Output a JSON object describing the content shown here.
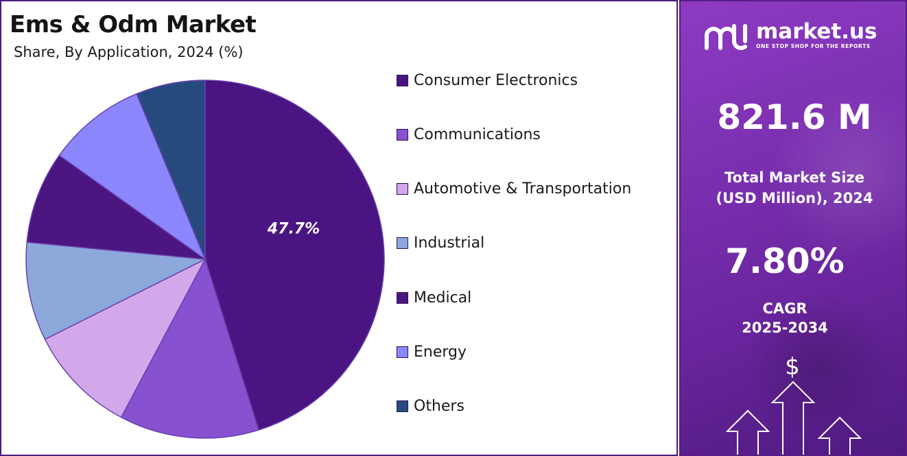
{
  "chart_data": {
    "type": "pie",
    "title": "Ems & Odm Market",
    "subtitle": "Share, By Application, 2024 (%)",
    "slices": [
      {
        "name": "Consumer Electronics",
        "value": 47.7,
        "color": "#4a1582",
        "label": "47.7%"
      },
      {
        "name": "Communications",
        "value": 13.3,
        "color": "#8751d0",
        "label": ""
      },
      {
        "name": "Automotive & Transportation",
        "value": 10.4,
        "color": "#d3a8ea",
        "label": ""
      },
      {
        "name": "Industrial",
        "value": 9.4,
        "color": "#8da8db",
        "label": ""
      },
      {
        "name": "Medical",
        "value": 8.8,
        "color": "#4b1680",
        "label": ""
      },
      {
        "name": "Energy",
        "value": 9.4,
        "color": "#8b86fb",
        "label": ""
      },
      {
        "name": "Others",
        "value": 6.6,
        "color": "#274a7e",
        "label": ""
      }
    ],
    "legend_position": "right"
  },
  "legend": [
    {
      "label": "Consumer Electronics",
      "color": "#4a1582"
    },
    {
      "label": "Communications",
      "color": "#8751d0"
    },
    {
      "label": "Automotive & Transportation",
      "color": "#d3a8ea"
    },
    {
      "label": "Industrial",
      "color": "#8da8db"
    },
    {
      "label": "Medical",
      "color": "#4b1680"
    },
    {
      "label": "Energy",
      "color": "#8b86fb"
    },
    {
      "label": "Others",
      "color": "#274a7e"
    }
  ],
  "sidebar": {
    "brand": "market.us",
    "tagline": "ONE STOP SHOP FOR THE REPORTS",
    "market_size_value": "821.6 M",
    "market_size_label_line1": "Total Market Size",
    "market_size_label_line2": "(USD Million), 2024",
    "cagr_value": "7.80%",
    "cagr_label_line1": "CAGR",
    "cagr_label_line2": "2025-2034",
    "currency_symbol": "$"
  }
}
